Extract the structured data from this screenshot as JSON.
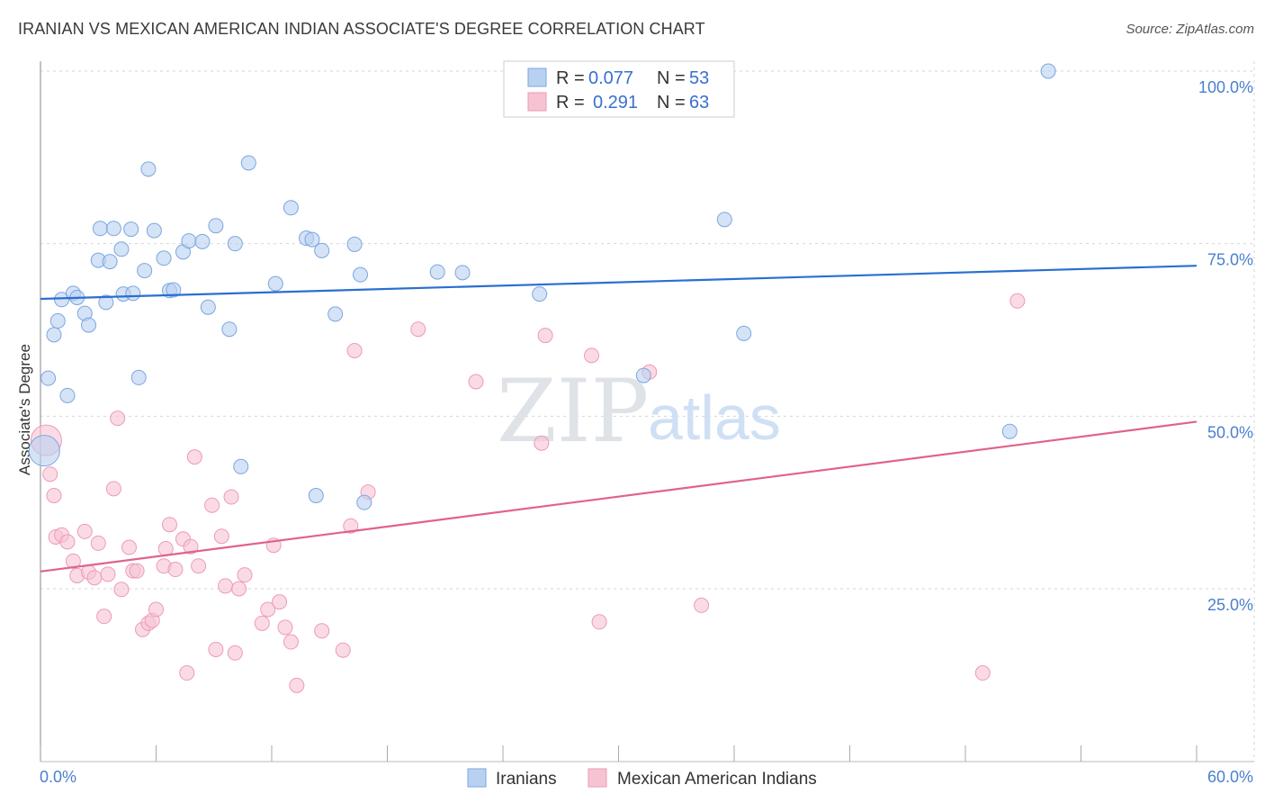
{
  "title": "IRANIAN VS MEXICAN AMERICAN INDIAN ASSOCIATE'S DEGREE CORRELATION CHART",
  "source": "Source: ZipAtlas.com",
  "watermark": {
    "zip": "ZIP",
    "atlas": "atlas"
  },
  "colors": {
    "blue_fill": "#b9d1f1",
    "blue_stroke": "#7ba6de",
    "blue_line": "#2a6fd0",
    "pink_fill": "#f7c3d3",
    "pink_stroke": "#ee9ab5",
    "pink_line": "#e0628c",
    "grid": "#d6d6d6",
    "axis": "#999999",
    "tick_text": "#4a7fd0"
  },
  "legend": {
    "rows": [
      {
        "r_label": "R = ",
        "r_value": "0.077",
        "n_label": "N = ",
        "n_value": "53",
        "series": "blue"
      },
      {
        "r_label": "R = ",
        "r_value": "0.291",
        "n_label": "N = ",
        "n_value": "63",
        "series": "pink"
      }
    ]
  },
  "bottom_legend": [
    {
      "label": "Iranians",
      "series": "blue"
    },
    {
      "label": "Mexican American Indians",
      "series": "pink"
    }
  ],
  "chart_data": {
    "type": "scatter",
    "title": "IRANIAN VS MEXICAN AMERICAN INDIAN ASSOCIATE'S DEGREE CORRELATION CHART",
    "xlabel": "",
    "ylabel": "Associate's Degree",
    "xlim": [
      0,
      60
    ],
    "ylim": [
      0,
      105
    ],
    "x_tick_labels": [
      "0.0%",
      "60.0%"
    ],
    "x_tick_values": [
      0,
      60
    ],
    "y_tick_labels": [
      "25.0%",
      "50.0%",
      "75.0%",
      "100.0%"
    ],
    "y_tick_values": [
      25,
      50,
      75,
      100
    ],
    "grid": true,
    "legend_placement": "top-center",
    "series": [
      {
        "name": "Iranians",
        "color": "#7ba6de",
        "trend": {
          "x": [
            0,
            60
          ],
          "y": [
            67.0,
            71.8
          ]
        },
        "points": [
          [
            0.4,
            55.5
          ],
          [
            0.7,
            61.8
          ],
          [
            0.9,
            63.8
          ],
          [
            1.1,
            66.9
          ],
          [
            1.4,
            53.0
          ],
          [
            1.7,
            67.8
          ],
          [
            1.9,
            67.2
          ],
          [
            2.3,
            64.9
          ],
          [
            2.5,
            63.2
          ],
          [
            3.0,
            72.6
          ],
          [
            3.1,
            77.2
          ],
          [
            3.4,
            66.5
          ],
          [
            3.6,
            72.4
          ],
          [
            3.8,
            77.2
          ],
          [
            4.2,
            74.2
          ],
          [
            4.3,
            67.7
          ],
          [
            4.7,
            77.1
          ],
          [
            4.8,
            67.8
          ],
          [
            5.1,
            55.6
          ],
          [
            5.4,
            71.1
          ],
          [
            5.6,
            85.8
          ],
          [
            5.9,
            76.9
          ],
          [
            6.4,
            72.9
          ],
          [
            6.7,
            68.2
          ],
          [
            6.9,
            68.3
          ],
          [
            7.4,
            73.8
          ],
          [
            7.7,
            75.4
          ],
          [
            8.4,
            75.3
          ],
          [
            8.7,
            65.8
          ],
          [
            9.1,
            77.6
          ],
          [
            9.8,
            62.6
          ],
          [
            10.1,
            75.0
          ],
          [
            10.4,
            42.7
          ],
          [
            10.8,
            86.7
          ],
          [
            12.2,
            69.2
          ],
          [
            13.0,
            80.2
          ],
          [
            13.8,
            75.8
          ],
          [
            14.1,
            75.6
          ],
          [
            14.3,
            38.5
          ],
          [
            14.6,
            74.0
          ],
          [
            15.3,
            64.8
          ],
          [
            16.3,
            74.9
          ],
          [
            16.6,
            70.5
          ],
          [
            16.8,
            37.5
          ],
          [
            20.6,
            70.9
          ],
          [
            21.9,
            70.8
          ],
          [
            25.9,
            67.7
          ],
          [
            31.3,
            55.9
          ],
          [
            35.5,
            78.5
          ],
          [
            36.5,
            62.0
          ],
          [
            50.3,
            47.8
          ],
          [
            52.3,
            100.0
          ],
          [
            0.2,
            45.0
          ]
        ]
      },
      {
        "name": "Mexican American Indians",
        "color": "#ee9ab5",
        "trend": {
          "x": [
            0,
            60
          ],
          "y": [
            27.5,
            49.2
          ]
        },
        "points": [
          [
            0.3,
            46.5
          ],
          [
            0.5,
            41.6
          ],
          [
            0.7,
            38.5
          ],
          [
            0.8,
            32.5
          ],
          [
            1.1,
            32.8
          ],
          [
            1.4,
            31.8
          ],
          [
            1.7,
            29.0
          ],
          [
            1.9,
            26.9
          ],
          [
            2.3,
            33.3
          ],
          [
            2.5,
            27.4
          ],
          [
            2.8,
            26.6
          ],
          [
            3.0,
            31.6
          ],
          [
            3.3,
            21.0
          ],
          [
            3.5,
            27.1
          ],
          [
            3.8,
            39.5
          ],
          [
            4.0,
            49.7
          ],
          [
            4.2,
            24.9
          ],
          [
            4.6,
            31.0
          ],
          [
            4.8,
            27.6
          ],
          [
            5.0,
            27.6
          ],
          [
            5.3,
            19.1
          ],
          [
            5.6,
            20.0
          ],
          [
            5.8,
            20.4
          ],
          [
            6.0,
            22.0
          ],
          [
            6.4,
            28.3
          ],
          [
            6.5,
            30.8
          ],
          [
            6.7,
            34.3
          ],
          [
            7.0,
            27.8
          ],
          [
            7.4,
            32.2
          ],
          [
            7.6,
            12.8
          ],
          [
            7.8,
            31.1
          ],
          [
            8.0,
            44.1
          ],
          [
            8.2,
            28.3
          ],
          [
            8.9,
            37.1
          ],
          [
            9.1,
            16.2
          ],
          [
            9.4,
            32.6
          ],
          [
            9.6,
            25.4
          ],
          [
            9.9,
            38.3
          ],
          [
            10.1,
            15.7
          ],
          [
            10.3,
            25.0
          ],
          [
            10.6,
            27.0
          ],
          [
            11.5,
            20.0
          ],
          [
            11.8,
            22.0
          ],
          [
            12.1,
            31.3
          ],
          [
            12.4,
            23.1
          ],
          [
            12.7,
            19.4
          ],
          [
            13.0,
            17.3
          ],
          [
            13.3,
            11.0
          ],
          [
            14.6,
            18.9
          ],
          [
            15.7,
            16.1
          ],
          [
            16.1,
            34.1
          ],
          [
            16.3,
            59.5
          ],
          [
            17.0,
            39.0
          ],
          [
            19.6,
            62.6
          ],
          [
            22.6,
            55.0
          ],
          [
            26.0,
            46.1
          ],
          [
            26.2,
            61.7
          ],
          [
            28.6,
            58.8
          ],
          [
            29.0,
            20.2
          ],
          [
            31.6,
            56.4
          ],
          [
            34.3,
            22.6
          ],
          [
            48.9,
            12.8
          ],
          [
            50.7,
            66.7
          ]
        ]
      }
    ]
  }
}
